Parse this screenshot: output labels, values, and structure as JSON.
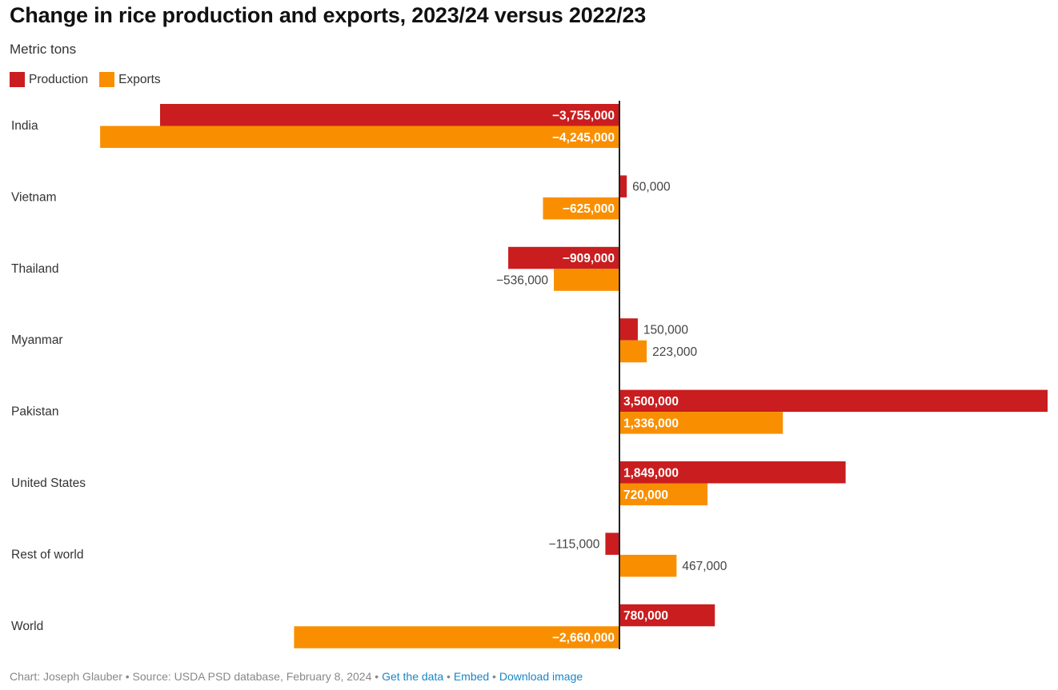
{
  "chart_data": {
    "type": "bar",
    "orientation": "horizontal",
    "title": "Change in rice production and exports, 2023/24 versus 2022/23",
    "subtitle": "Metric tons",
    "categories": [
      "India",
      "Vietnam",
      "Thailand",
      "Myanmar",
      "Pakistan",
      "United States",
      "Rest of world",
      "World"
    ],
    "series": [
      {
        "name": "Production",
        "color": "#c91d1f",
        "values": [
          -3755000,
          60000,
          -909000,
          150000,
          3500000,
          1849000,
          -115000,
          780000
        ]
      },
      {
        "name": "Exports",
        "color": "#f98f00",
        "values": [
          -4245000,
          -625000,
          -536000,
          223000,
          1336000,
          720000,
          467000,
          -2660000
        ]
      }
    ],
    "xlim": [
      -4245000,
      3500000
    ],
    "grid": false,
    "legend": "top-left"
  },
  "footer": {
    "credit": "Chart: Joseph Glauber • Source: USDA PSD database, February 8, 2024 • ",
    "get_data": "Get the data",
    "sep": " • ",
    "embed": "Embed",
    "download": "Download image"
  }
}
